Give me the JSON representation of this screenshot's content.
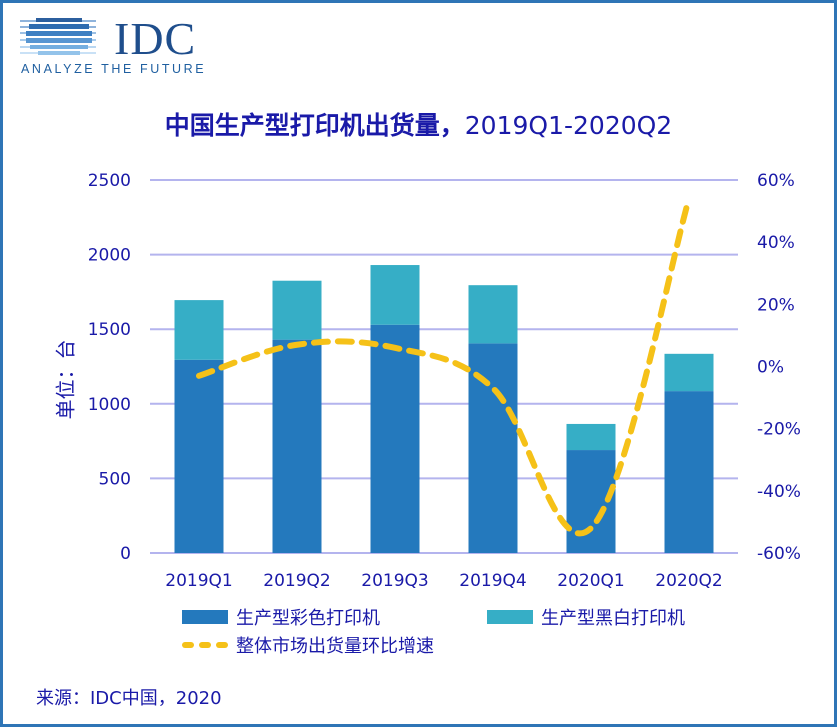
{
  "logo": {
    "wordmark": "IDC",
    "tagline": "ANALYZE THE FUTURE"
  },
  "colors": {
    "frame": "#2e75b6",
    "color_printer": "#2479bd",
    "mono_printer": "#36aec6",
    "growth_line": "#f5c118",
    "grid": "#b4b4ee",
    "text": "#1a1aa8"
  },
  "chart_data": {
    "type": "bar",
    "stacked": true,
    "title": "中国生产型打印机出货量，2019Q1-2020Q2",
    "title_bold": "中国生产型打印机出货量，",
    "title_rest": "2019Q1-2020Q2",
    "ylabel": "单位：台",
    "xlabel": "",
    "categories": [
      "2019Q1",
      "2019Q2",
      "2019Q3",
      "2019Q4",
      "2020Q1",
      "2020Q2"
    ],
    "ylim": [
      0,
      2500
    ],
    "yticks": [
      "0",
      "500",
      "1000",
      "1500",
      "2000",
      "2500"
    ],
    "y2lim": [
      -60,
      60
    ],
    "y2ticks": [
      "-60%",
      "-40%",
      "-20%",
      "0%",
      "20%",
      "40%",
      "60%"
    ],
    "grid": true,
    "series": [
      {
        "name": "生产型彩色打印机",
        "type": "bar",
        "axis": "left",
        "values": [
          1295,
          1430,
          1530,
          1405,
          690,
          1085
        ]
      },
      {
        "name": "生产型黑白打印机",
        "type": "bar",
        "axis": "left",
        "values": [
          400,
          395,
          400,
          390,
          175,
          250
        ]
      },
      {
        "name": "整体市场出货量环比增速",
        "type": "line",
        "axis": "right",
        "style": "dashed",
        "values": [
          -3,
          7,
          6,
          -7,
          -52,
          54
        ]
      }
    ],
    "legend_position": "bottom"
  },
  "source": "来源：IDC中国，2020"
}
